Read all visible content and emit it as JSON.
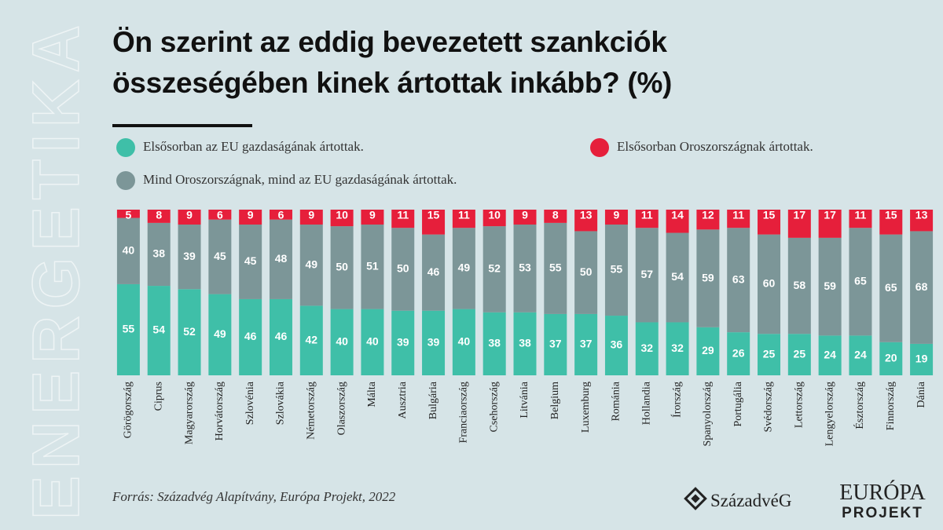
{
  "chart_data": {
    "type": "stacked_bar",
    "title": "Ön szerint az eddig bevezetett szankciók összeségében kinek ártottak inkább? (%)",
    "side_label": "ENERGETIKA",
    "source": "Forrás: Századvég Alapítvány, Európa Projekt, 2022",
    "logos": [
      "SzázadvéG",
      "EURÓPA",
      "PROJEKT"
    ],
    "categories": [
      "Görögország",
      "Ciprus",
      "Magyarország",
      "Horvátország",
      "Szlovénia",
      "Szlovákia",
      "Németország",
      "Olaszország",
      "Málta",
      "Ausztria",
      "Bulgária",
      "Franciaország",
      "Csehország",
      "Litvánia",
      "Belgium",
      "Luxemburg",
      "Románia",
      "Hollandia",
      "Írország",
      "Spanyolország",
      "Portugália",
      "Svédország",
      "Lettország",
      "Lengyelország",
      "Észtország",
      "Finnország",
      "Dánia"
    ],
    "series": [
      {
        "name": "Elsősorban az EU gazdaságának ártottak.",
        "color": "#3fbfa8",
        "values": [
          55,
          54,
          52,
          49,
          46,
          46,
          42,
          40,
          40,
          39,
          39,
          40,
          38,
          38,
          37,
          37,
          36,
          32,
          32,
          29,
          26,
          25,
          25,
          24,
          24,
          20,
          19
        ]
      },
      {
        "name": "Mind Oroszországnak, mind az EU gazdaságának ártottak.",
        "color": "#7c9698",
        "values": [
          40,
          38,
          39,
          45,
          45,
          48,
          49,
          50,
          51,
          50,
          46,
          49,
          52,
          53,
          55,
          50,
          55,
          57,
          54,
          59,
          63,
          60,
          58,
          59,
          65,
          65,
          68
        ]
      },
      {
        "name": "Elsősorban Oroszországnak ártottak.",
        "color": "#e61f3b",
        "values": [
          5,
          8,
          9,
          6,
          9,
          6,
          9,
          10,
          9,
          11,
          15,
          11,
          10,
          9,
          8,
          13,
          9,
          11,
          14,
          12,
          11,
          15,
          17,
          17,
          11,
          15,
          13
        ]
      }
    ],
    "ylim": [
      0,
      100
    ]
  }
}
